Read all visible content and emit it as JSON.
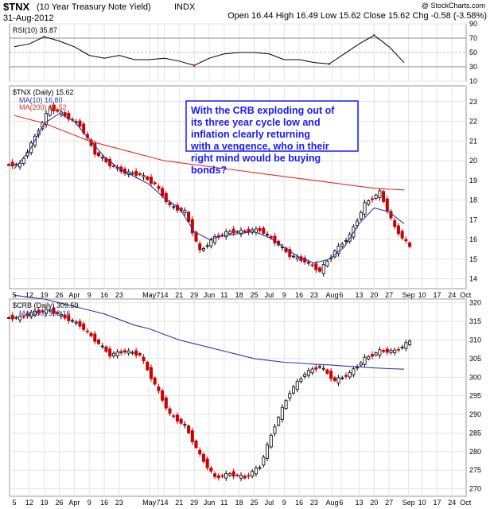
{
  "header": {
    "symbol": "$TNX",
    "name": "(10 Year Treasury Note Yield)",
    "exchange": "INDX",
    "date": "31-Aug-2012",
    "quote": "Open 16.44  High 16.49  Low 15.62  Close 15.62  Chg -0.58 (-3.58%)",
    "watermark": "@ StockCharts.com",
    "chg_color": "#cc0000"
  },
  "chart_data": [
    {
      "type": "line",
      "panel": "rsi",
      "legend": "RSI(10) 35.87",
      "ylim": [
        10,
        90
      ],
      "yticks": [
        "90",
        "70",
        "50",
        "30",
        "10"
      ],
      "x": [
        "Mar 5",
        "Mar 12",
        "Mar 19",
        "Mar 26",
        "Apr 2",
        "Apr 9",
        "Apr 16",
        "Apr 23",
        "Apr 30",
        "May 7",
        "May 14",
        "May 21",
        "May 29",
        "Jun 4",
        "Jun 11",
        "Jun 18",
        "Jun 25",
        "Jul 2",
        "Jul 9",
        "Jul 16",
        "Jul 23",
        "Jul 30",
        "Aug 6",
        "Aug 13",
        "Aug 20",
        "Aug 27",
        "Aug 31"
      ],
      "series": [
        {
          "name": "RSI(10)",
          "values": [
            58,
            62,
            72,
            66,
            58,
            46,
            42,
            46,
            40,
            40,
            42,
            38,
            32,
            42,
            48,
            50,
            50,
            48,
            40,
            40,
            36,
            34,
            48,
            62,
            74,
            58,
            35.87
          ]
        }
      ],
      "color": "#000000"
    },
    {
      "type": "candlestick",
      "panel": "tnx",
      "legend": [
        "$TNX (Daily) 15.62",
        "MA(10) 16.80",
        "MA(200) 18.52"
      ],
      "ylim": [
        13.5,
        23.8
      ],
      "yticks": [
        "23",
        "22",
        "21",
        "20",
        "19",
        "18",
        "17",
        "16",
        "15",
        "14"
      ],
      "x": [
        "Mar 5",
        "Mar 12",
        "Mar 19",
        "Mar 26",
        "Apr 2",
        "Apr 9",
        "Apr 16",
        "Apr 23",
        "Apr 30",
        "May 7",
        "May 14",
        "May 21",
        "May 29",
        "Jun 4",
        "Jun 11",
        "Jun 18",
        "Jun 25",
        "Jul 2",
        "Jul 9",
        "Jul 16",
        "Jul 23",
        "Jul 30",
        "Aug 6",
        "Aug 13",
        "Aug 20",
        "Aug 27",
        "Aug 31"
      ],
      "series": [
        {
          "name": "$TNX close",
          "values": [
            19.8,
            21.2,
            22.7,
            22.3,
            21.8,
            20.4,
            19.8,
            19.4,
            19.3,
            18.8,
            17.7,
            17.4,
            15.4,
            16.1,
            16.4,
            16.4,
            16.5,
            15.9,
            15.2,
            14.9,
            14.4,
            15.4,
            16.2,
            17.8,
            18.4,
            16.6,
            15.62
          ]
        },
        {
          "name": "MA(10)",
          "values": [
            19.6,
            20.5,
            21.9,
            22.4,
            22.0,
            21.1,
            20.2,
            19.6,
            19.2,
            18.8,
            18.1,
            17.6,
            16.4,
            16.0,
            16.2,
            16.3,
            16.4,
            16.1,
            15.6,
            15.1,
            14.8,
            15.0,
            15.6,
            16.8,
            17.6,
            17.4,
            16.8
          ]
        },
        {
          "name": "MA(200)",
          "values": [
            22.3,
            22.1,
            21.9,
            21.6,
            21.3,
            21.0,
            20.8,
            20.6,
            20.4,
            20.2,
            20.0,
            19.9,
            19.8,
            19.7,
            19.6,
            19.5,
            19.4,
            19.3,
            19.2,
            19.1,
            19.0,
            18.9,
            18.8,
            18.7,
            18.6,
            18.55,
            18.52
          ]
        }
      ],
      "colors": {
        "up": "#000000",
        "down": "#cc0000",
        "ma_short": "#2b3aa8",
        "ma_long": "#e0311e"
      },
      "annotation": "With the CRB exploding out of its three year cycle low and inflation clearly returning with a vengence, who in their right mind would be buying bonds?"
    },
    {
      "type": "candlestick",
      "panel": "crb",
      "legend": [
        "$CRB (Daily) 309.59",
        "MA(200) 302.16"
      ],
      "ylim": [
        268,
        321
      ],
      "yticks": [
        "320",
        "315",
        "310",
        "305",
        "300",
        "295",
        "290",
        "285",
        "280",
        "275",
        "270"
      ],
      "x": [
        "Mar 5",
        "Mar 12",
        "Mar 19",
        "Mar 26",
        "Apr 2",
        "Apr 9",
        "Apr 16",
        "Apr 23",
        "Apr 30",
        "May 7",
        "May 14",
        "May 21",
        "May 29",
        "Jun 4",
        "Jun 11",
        "Jun 18",
        "Jun 25",
        "Jul 2",
        "Jul 9",
        "Jul 16",
        "Jul 23",
        "Jul 30",
        "Aug 6",
        "Aug 13",
        "Aug 20",
        "Aug 27",
        "Aug 31"
      ],
      "series": [
        {
          "name": "$CRB close",
          "values": [
            316,
            317.5,
            318,
            316,
            314,
            310,
            306,
            307,
            306,
            298,
            290,
            287,
            279,
            273,
            274,
            273,
            276,
            287,
            296,
            301,
            303,
            299,
            301,
            305,
            307,
            307,
            309.59
          ]
        },
        {
          "name": "MA(200)",
          "values": [
            322,
            321.5,
            321,
            320,
            319,
            318,
            317,
            315.5,
            314,
            313,
            311.5,
            310,
            309,
            308,
            307,
            306,
            305,
            304.5,
            304,
            303.8,
            303.5,
            303.3,
            303,
            302.8,
            302.5,
            302.3,
            302.16
          ]
        }
      ],
      "colors": {
        "up": "#000000",
        "down": "#cc0000",
        "ma_long": "#2b3aa8"
      }
    }
  ],
  "x_axis": {
    "labels": [
      {
        "t": "5",
        "i": 0
      },
      {
        "t": "12",
        "i": 1
      },
      {
        "t": "19",
        "i": 2
      },
      {
        "t": "26",
        "i": 3
      },
      {
        "t": "Apr",
        "i": 4
      },
      {
        "t": "9",
        "i": 5
      },
      {
        "t": "16",
        "i": 6
      },
      {
        "t": "23",
        "i": 7
      },
      {
        "t": "May",
        "i": 9
      },
      {
        "t": "7",
        "i": 9.6
      },
      {
        "t": "14",
        "i": 10
      },
      {
        "t": "21",
        "i": 11
      },
      {
        "t": "29",
        "i": 12
      },
      {
        "t": "Jun",
        "i": 13
      },
      {
        "t": "11",
        "i": 14
      },
      {
        "t": "18",
        "i": 15
      },
      {
        "t": "25",
        "i": 16
      },
      {
        "t": "Jul",
        "i": 17
      },
      {
        "t": "9",
        "i": 18
      },
      {
        "t": "16",
        "i": 19
      },
      {
        "t": "23",
        "i": 20
      },
      {
        "t": "Aug",
        "i": 21.2
      },
      {
        "t": "6",
        "i": 21.8
      },
      {
        "t": "13",
        "i": 23
      },
      {
        "t": "20",
        "i": 24
      },
      {
        "t": "27",
        "i": 25
      },
      {
        "t": "Sep",
        "i": 26.3
      },
      {
        "t": "10",
        "i": 27.2
      },
      {
        "t": "17",
        "i": 28.2
      },
      {
        "t": "24",
        "i": 29.2
      },
      {
        "t": "Oct",
        "i": 30.1
      }
    ]
  }
}
